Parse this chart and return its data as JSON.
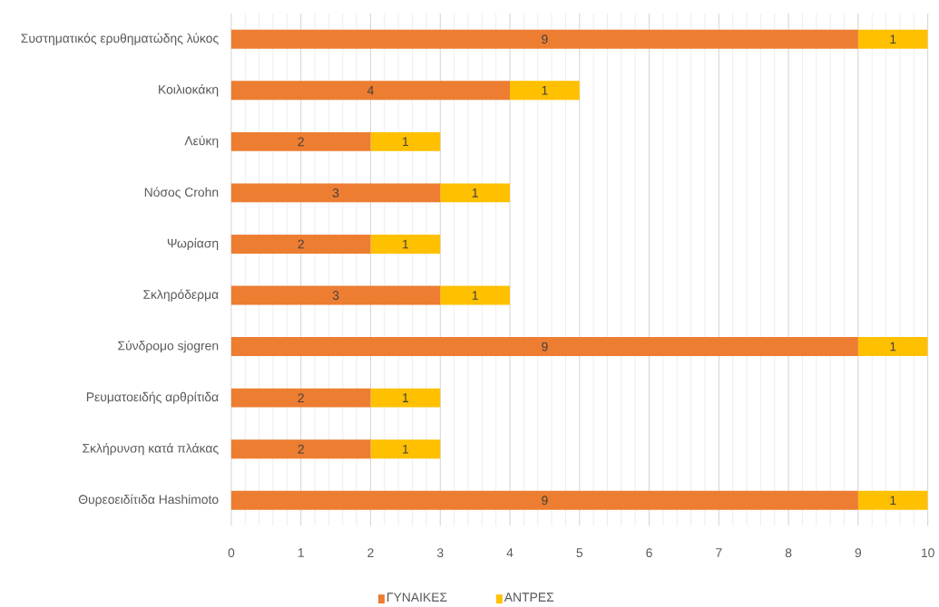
{
  "chart_data": {
    "type": "bar",
    "orientation": "horizontal",
    "stacked": true,
    "categories": [
      "Συστηματικός ερυθηματώδης λύκος",
      "Κοιλιοκάκη",
      "Λεύκη",
      "Νόσος Crohn",
      "Ψωρίαση",
      "Σκληρόδερμα",
      "Σύνδρομο sjogren",
      "Ρευματοειδής αρθρίτιδα",
      "Σκλήρυνση κατά πλάκας",
      "Θυρεοειδίτιδα Hashimoto"
    ],
    "series": [
      {
        "name": "ΓΥΝΑΙΚΕΣ",
        "color": "#ed7d31",
        "values": [
          9,
          4,
          2,
          3,
          2,
          3,
          9,
          2,
          2,
          9
        ]
      },
      {
        "name": "ΑΝΤΡΕΣ",
        "color": "#ffc000",
        "values": [
          1,
          1,
          1,
          1,
          1,
          1,
          1,
          1,
          1,
          1
        ]
      }
    ],
    "xlim": [
      0,
      10
    ],
    "xticks": [
      0,
      1,
      2,
      3,
      4,
      5,
      6,
      7,
      8,
      9,
      10
    ],
    "grid": "x",
    "legend": "bottom",
    "data_labels": true
  }
}
